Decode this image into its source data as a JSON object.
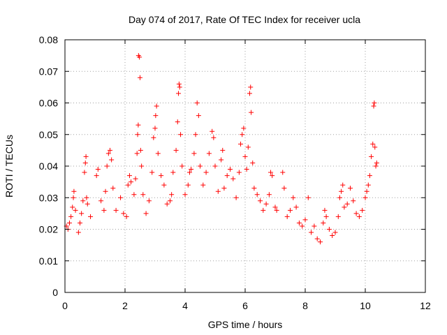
{
  "chart_data": {
    "type": "scatter",
    "title": "Day 074 of 2017, Rate Of TEC Index for receiver ucla",
    "xlabel": "GPS time / hours",
    "ylabel": "ROTI / TECUs",
    "xlim": [
      0,
      12
    ],
    "ylim": [
      0,
      0.08
    ],
    "x_ticks": [
      0,
      2,
      4,
      6,
      8,
      10,
      12
    ],
    "x_tick_labels": [
      "0",
      "2",
      "4",
      "6",
      "8",
      "10",
      "12"
    ],
    "y_ticks": [
      0,
      0.01,
      0.02,
      0.03,
      0.04,
      0.05,
      0.06,
      0.07,
      0.08
    ],
    "y_tick_labels": [
      "0",
      "0.01",
      "0.02",
      "0.03",
      "0.04",
      "0.05",
      "0.06",
      "0.07",
      "0.08"
    ],
    "grid": true,
    "marker": "+",
    "color": "#ff0000",
    "series": [
      {
        "name": "ROTI",
        "points": [
          [
            0.05,
            0.021
          ],
          [
            0.1,
            0.02
          ],
          [
            0.15,
            0.022
          ],
          [
            0.2,
            0.024
          ],
          [
            0.25,
            0.027
          ],
          [
            0.28,
            0.03
          ],
          [
            0.3,
            0.032
          ],
          [
            0.35,
            0.026
          ],
          [
            0.45,
            0.019
          ],
          [
            0.5,
            0.022
          ],
          [
            0.55,
            0.025
          ],
          [
            0.6,
            0.029
          ],
          [
            0.65,
            0.038
          ],
          [
            0.68,
            0.041
          ],
          [
            0.7,
            0.043
          ],
          [
            0.72,
            0.03
          ],
          [
            0.75,
            0.028
          ],
          [
            0.85,
            0.024
          ],
          [
            1.05,
            0.037
          ],
          [
            1.1,
            0.039
          ],
          [
            1.2,
            0.029
          ],
          [
            1.3,
            0.026
          ],
          [
            1.35,
            0.032
          ],
          [
            1.4,
            0.04
          ],
          [
            1.45,
            0.044
          ],
          [
            1.5,
            0.045
          ],
          [
            1.55,
            0.042
          ],
          [
            1.6,
            0.033
          ],
          [
            1.7,
            0.026
          ],
          [
            1.85,
            0.03
          ],
          [
            1.95,
            0.025
          ],
          [
            2.05,
            0.024
          ],
          [
            2.1,
            0.034
          ],
          [
            2.15,
            0.037
          ],
          [
            2.2,
            0.035
          ],
          [
            2.3,
            0.031
          ],
          [
            2.35,
            0.036
          ],
          [
            2.4,
            0.044
          ],
          [
            2.42,
            0.05
          ],
          [
            2.44,
            0.053
          ],
          [
            2.45,
            0.075
          ],
          [
            2.48,
            0.0745
          ],
          [
            2.5,
            0.068
          ],
          [
            2.52,
            0.045
          ],
          [
            2.55,
            0.04
          ],
          [
            2.6,
            0.031
          ],
          [
            2.7,
            0.025
          ],
          [
            2.8,
            0.029
          ],
          [
            2.9,
            0.038
          ],
          [
            2.95,
            0.049
          ],
          [
            3.0,
            0.052
          ],
          [
            3.02,
            0.056
          ],
          [
            3.05,
            0.059
          ],
          [
            3.1,
            0.044
          ],
          [
            3.2,
            0.037
          ],
          [
            3.3,
            0.034
          ],
          [
            3.4,
            0.028
          ],
          [
            3.5,
            0.029
          ],
          [
            3.55,
            0.031
          ],
          [
            3.6,
            0.038
          ],
          [
            3.7,
            0.045
          ],
          [
            3.75,
            0.054
          ],
          [
            3.78,
            0.063
          ],
          [
            3.8,
            0.066
          ],
          [
            3.82,
            0.065
          ],
          [
            3.85,
            0.05
          ],
          [
            3.9,
            0.04
          ],
          [
            4.0,
            0.031
          ],
          [
            4.1,
            0.034
          ],
          [
            4.15,
            0.038
          ],
          [
            4.2,
            0.039
          ],
          [
            4.3,
            0.044
          ],
          [
            4.35,
            0.05
          ],
          [
            4.4,
            0.06
          ],
          [
            4.45,
            0.056
          ],
          [
            4.5,
            0.04
          ],
          [
            4.6,
            0.034
          ],
          [
            4.7,
            0.038
          ],
          [
            4.8,
            0.044
          ],
          [
            4.9,
            0.051
          ],
          [
            4.95,
            0.049
          ],
          [
            5.0,
            0.04
          ],
          [
            5.1,
            0.032
          ],
          [
            5.2,
            0.042
          ],
          [
            5.25,
            0.045
          ],
          [
            5.3,
            0.033
          ],
          [
            5.4,
            0.037
          ],
          [
            5.5,
            0.039
          ],
          [
            5.6,
            0.036
          ],
          [
            5.7,
            0.03
          ],
          [
            5.8,
            0.038
          ],
          [
            5.85,
            0.047
          ],
          [
            5.9,
            0.05
          ],
          [
            5.95,
            0.052
          ],
          [
            6.0,
            0.043
          ],
          [
            6.05,
            0.039
          ],
          [
            6.1,
            0.046
          ],
          [
            6.15,
            0.063
          ],
          [
            6.18,
            0.065
          ],
          [
            6.2,
            0.057
          ],
          [
            6.25,
            0.041
          ],
          [
            6.3,
            0.033
          ],
          [
            6.4,
            0.031
          ],
          [
            6.5,
            0.029
          ],
          [
            6.6,
            0.026
          ],
          [
            6.7,
            0.028
          ],
          [
            6.8,
            0.031
          ],
          [
            6.85,
            0.038
          ],
          [
            6.9,
            0.037
          ],
          [
            7.0,
            0.027
          ],
          [
            7.05,
            0.026
          ],
          [
            7.25,
            0.038
          ],
          [
            7.3,
            0.033
          ],
          [
            7.4,
            0.024
          ],
          [
            7.5,
            0.026
          ],
          [
            7.6,
            0.03
          ],
          [
            7.7,
            0.027
          ],
          [
            7.8,
            0.022
          ],
          [
            7.9,
            0.021
          ],
          [
            8.0,
            0.023
          ],
          [
            8.1,
            0.03
          ],
          [
            8.2,
            0.019
          ],
          [
            8.3,
            0.021
          ],
          [
            8.4,
            0.017
          ],
          [
            8.5,
            0.016
          ],
          [
            8.6,
            0.022
          ],
          [
            8.65,
            0.026
          ],
          [
            8.7,
            0.024
          ],
          [
            8.8,
            0.02
          ],
          [
            8.9,
            0.018
          ],
          [
            9.0,
            0.019
          ],
          [
            9.1,
            0.024
          ],
          [
            9.15,
            0.03
          ],
          [
            9.2,
            0.032
          ],
          [
            9.25,
            0.034
          ],
          [
            9.3,
            0.027
          ],
          [
            9.4,
            0.028
          ],
          [
            9.5,
            0.033
          ],
          [
            9.6,
            0.029
          ],
          [
            9.7,
            0.025
          ],
          [
            9.8,
            0.024
          ],
          [
            9.9,
            0.026
          ],
          [
            10.0,
            0.03
          ],
          [
            10.05,
            0.032
          ],
          [
            10.1,
            0.034
          ],
          [
            10.15,
            0.037
          ],
          [
            10.2,
            0.043
          ],
          [
            10.25,
            0.047
          ],
          [
            10.28,
            0.059
          ],
          [
            10.3,
            0.06
          ],
          [
            10.32,
            0.046
          ],
          [
            10.35,
            0.04
          ],
          [
            10.38,
            0.041
          ]
        ]
      }
    ]
  }
}
